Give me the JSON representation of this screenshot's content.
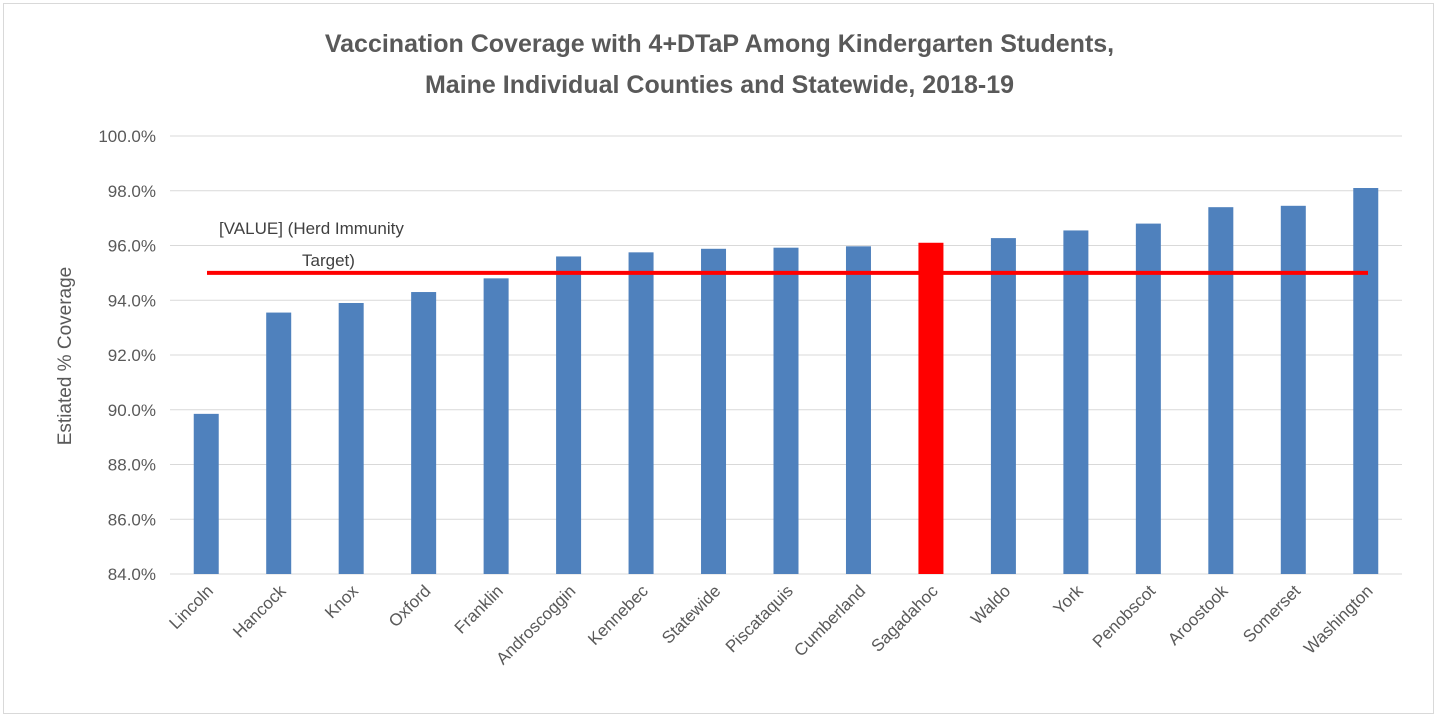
{
  "chart_data": {
    "type": "bar",
    "title_lines": [
      "Vaccination Coverage with 4+DTaP Among Kindergarten Students,",
      "Maine Individual Counties and Statewide, 2018-19"
    ],
    "xlabel": "",
    "ylabel": "Estiated % Coverage",
    "ylim": [
      84.0,
      100.0
    ],
    "yticks": [
      "84.0%",
      "86.0%",
      "88.0%",
      "90.0%",
      "92.0%",
      "94.0%",
      "96.0%",
      "98.0%",
      "100.0%"
    ],
    "ytick_values": [
      84,
      86,
      88,
      90,
      92,
      94,
      96,
      98,
      100
    ],
    "categories": [
      "Lincoln",
      "Hancock",
      "Knox",
      "Oxford",
      "Franklin",
      "Androscoggin",
      "Kennebec",
      "Statewide",
      "Piscataquis",
      "Cumberland",
      "Sagadahoc",
      "Waldo",
      "York",
      "Penobscot",
      "Aroostook",
      "Somerset",
      "Washington"
    ],
    "values": [
      89.85,
      93.55,
      93.9,
      94.3,
      94.8,
      95.6,
      95.75,
      95.88,
      95.92,
      95.97,
      96.1,
      96.27,
      96.55,
      96.8,
      97.4,
      97.45,
      98.1
    ],
    "highlight_category": "Sagadahoc",
    "bar_color": "#4f81bd",
    "highlight_color": "#ff0000",
    "grid": true,
    "target": {
      "value": 95.0,
      "label_line1": "[VALUE] (Herd Immunity",
      "label_line2": "Target)",
      "color": "#ff0000"
    }
  }
}
